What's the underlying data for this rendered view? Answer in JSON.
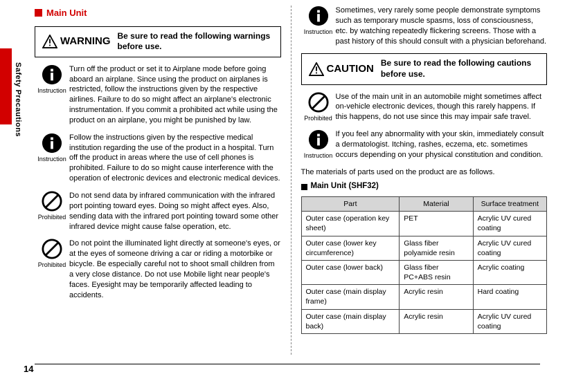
{
  "side_label": "Safety Precautions",
  "page_number": "14",
  "section_title": "Main Unit",
  "warning": {
    "label": "WARNING",
    "body": "Be sure to read the following warnings before use."
  },
  "caution": {
    "label": "CAUTION",
    "body": "Be sure to read the following cautions before use."
  },
  "icons": {
    "instruction": "Instruction",
    "prohibited": "Prohibited"
  },
  "left_items": [
    {
      "type": "instruction",
      "text": "Turn off the product or set it to Airplane mode before going aboard an airplane. Since using the product on airplanes is restricted, follow the instructions given by the respective airlines. Failure to do so might affect an airplane's electronic instrumentation. If you commit a prohibited act while using the product on an airplane, you might be punished by law."
    },
    {
      "type": "instruction",
      "text": "Follow the instructions given by the respective medical institution regarding the use of the product in a hospital. Turn off the product in areas where the use of cell phones is prohibited.\nFailure to do so might cause interference with the operation of electronic devices and electronic medical devices."
    },
    {
      "type": "prohibited",
      "text": "Do not send data by infrared communication with the infrared port pointing toward eyes. Doing so might affect eyes. Also, sending data with the infrared port pointing toward some other infrared device might cause false operation, etc."
    },
    {
      "type": "prohibited",
      "text": "Do not point the illuminated light directly at someone's eyes, or at the eyes of someone driving a car or riding a motorbike or bicycle. Be especially careful not to shoot small children from a very close distance. Do not use Mobile light near people's faces. Eyesight may be temporarily affected leading to accidents."
    }
  ],
  "right_items_pre": [
    {
      "type": "instruction",
      "text": "Sometimes, very rarely some people demonstrate symptoms such as temporary muscle spasms, loss of consciousness, etc. by watching repeatedly flickering screens. Those with a past history of this should consult with a physician beforehand."
    }
  ],
  "right_items_post": [
    {
      "type": "prohibited",
      "text": "Use of the main unit in an automobile might sometimes affect on-vehicle electronic devices, though this rarely happens. If this happens, do not use since this may impair safe travel."
    },
    {
      "type": "instruction",
      "text": "If you feel any abnormality with your skin, immediately consult a dermatologist. Itching, rashes, eczema, etc. sometimes occurs depending on your physical constitution and condition."
    }
  ],
  "materials_intro": "The materials of parts used on the product are as follows.",
  "materials_title": "Main Unit (SHF32)",
  "table": {
    "headers": [
      "Part",
      "Material",
      "Surface treatment"
    ],
    "rows": [
      [
        "Outer case (operation key sheet)",
        "PET",
        "Acrylic UV cured coating"
      ],
      [
        "Outer case (lower key circumference)",
        "Glass fiber polyamide resin",
        "Acrylic UV cured coating"
      ],
      [
        "Outer case (lower back)",
        "Glass fiber PC+ABS resin",
        "Acrylic coating"
      ],
      [
        "Outer case (main display frame)",
        "Acrylic resin",
        "Hard coating"
      ],
      [
        "Outer case (main display back)",
        "Acrylic resin",
        "Acrylic UV cured coating"
      ]
    ],
    "col_widths": [
      "40%",
      "30%",
      "30%"
    ]
  },
  "colors": {
    "accent": "#d20000",
    "table_header_bg": "#d6d6d6",
    "border": "#444444"
  }
}
